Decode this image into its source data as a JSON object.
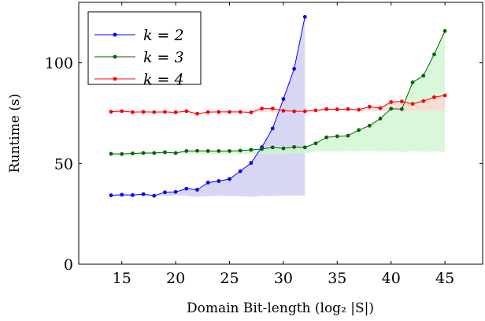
{
  "chart_data": {
    "type": "line",
    "xlabel": "Domain Bit-length (log₂ |S|)",
    "ylabel": "Runtime (s)",
    "xlim": [
      11,
      48.5
    ],
    "ylim": [
      0,
      130
    ],
    "xticks": [
      15,
      20,
      25,
      30,
      35,
      40,
      45
    ],
    "yticks": [
      0,
      50,
      100
    ],
    "grid": false,
    "legend_position": "top-left",
    "series": [
      {
        "name": "k = 2",
        "color": "#0000ff",
        "band_color": "#c9c9f2",
        "x": [
          14,
          15,
          16,
          17,
          18,
          19,
          20,
          21,
          22,
          23,
          24,
          25,
          26,
          27,
          28,
          29,
          30,
          31,
          32
        ],
        "y": [
          34.2,
          34.5,
          34.3,
          34.8,
          34.0,
          35.7,
          35.9,
          37.5,
          37.0,
          40.5,
          41.3,
          42.3,
          46.2,
          50.3,
          58.1,
          67.4,
          82.0,
          97.0,
          122.8
        ],
        "band_lower": [
          34.0,
          34.0,
          34.2,
          34.1,
          34.0,
          33.8,
          34.1,
          33.9,
          33.5,
          33.8,
          34.0,
          33.7,
          33.8,
          33.5,
          34.0,
          33.8,
          34.1,
          34.0,
          34.0
        ]
      },
      {
        "name": "k = 3",
        "color": "#006400",
        "band_color": "#ccf5cc",
        "x": [
          14,
          15,
          16,
          17,
          18,
          19,
          20,
          21,
          22,
          23,
          24,
          25,
          26,
          27,
          28,
          29,
          30,
          31,
          32,
          33,
          34,
          35,
          36,
          37,
          38,
          39,
          40,
          41,
          42,
          43,
          44,
          45
        ],
        "y": [
          54.8,
          54.7,
          55.0,
          55.2,
          55.2,
          55.6,
          55.2,
          56.2,
          56.3,
          56.2,
          56.2,
          56.2,
          56.4,
          56.8,
          57.2,
          58.0,
          57.5,
          58.2,
          58.0,
          60.0,
          63.0,
          63.5,
          63.8,
          66.6,
          68.8,
          72.3,
          77.2,
          77.0,
          90.3,
          93.6,
          104.2,
          115.8
        ],
        "band_lower": [
          54.5,
          54.3,
          54.6,
          54.4,
          54.7,
          54.5,
          54.8,
          54.6,
          54.9,
          54.5,
          54.7,
          54.9,
          54.6,
          54.8,
          54.5,
          54.8,
          54.5,
          55.1,
          54.9,
          56.0,
          56.1,
          55.8,
          56.2,
          55.9,
          56.3,
          55.8,
          56.1,
          55.6,
          56.2,
          55.7,
          56.0,
          55.8
        ]
      },
      {
        "name": "k = 4",
        "color": "#ff0000",
        "band_color": "#ffd6d6",
        "x": [
          14,
          15,
          16,
          17,
          18,
          19,
          20,
          21,
          22,
          23,
          24,
          25,
          26,
          27,
          28,
          29,
          30,
          31,
          32,
          33,
          34,
          35,
          36,
          37,
          38,
          39,
          40,
          41,
          42,
          43,
          44,
          45
        ],
        "y": [
          75.7,
          76.0,
          75.5,
          75.6,
          75.5,
          75.6,
          75.4,
          76.0,
          74.7,
          75.5,
          75.6,
          75.6,
          75.6,
          75.4,
          77.3,
          77.3,
          76.2,
          75.9,
          75.9,
          76.4,
          77.0,
          76.9,
          77.0,
          76.7,
          78.2,
          77.5,
          80.5,
          80.8,
          79.6,
          81.0,
          82.9,
          83.8
        ],
        "band_lower": [
          75.5,
          75.4,
          75.3,
          75.4,
          75.4,
          75.3,
          75.2,
          75.4,
          74.7,
          75.3,
          75.4,
          75.3,
          75.2,
          75.2,
          75.6,
          75.4,
          75.6,
          75.5,
          75.7,
          75.8,
          76.0,
          75.9,
          76.1,
          76.0,
          76.2,
          75.8,
          76.3,
          75.7,
          76.1,
          76.3,
          76.4,
          76.5
        ]
      }
    ]
  }
}
